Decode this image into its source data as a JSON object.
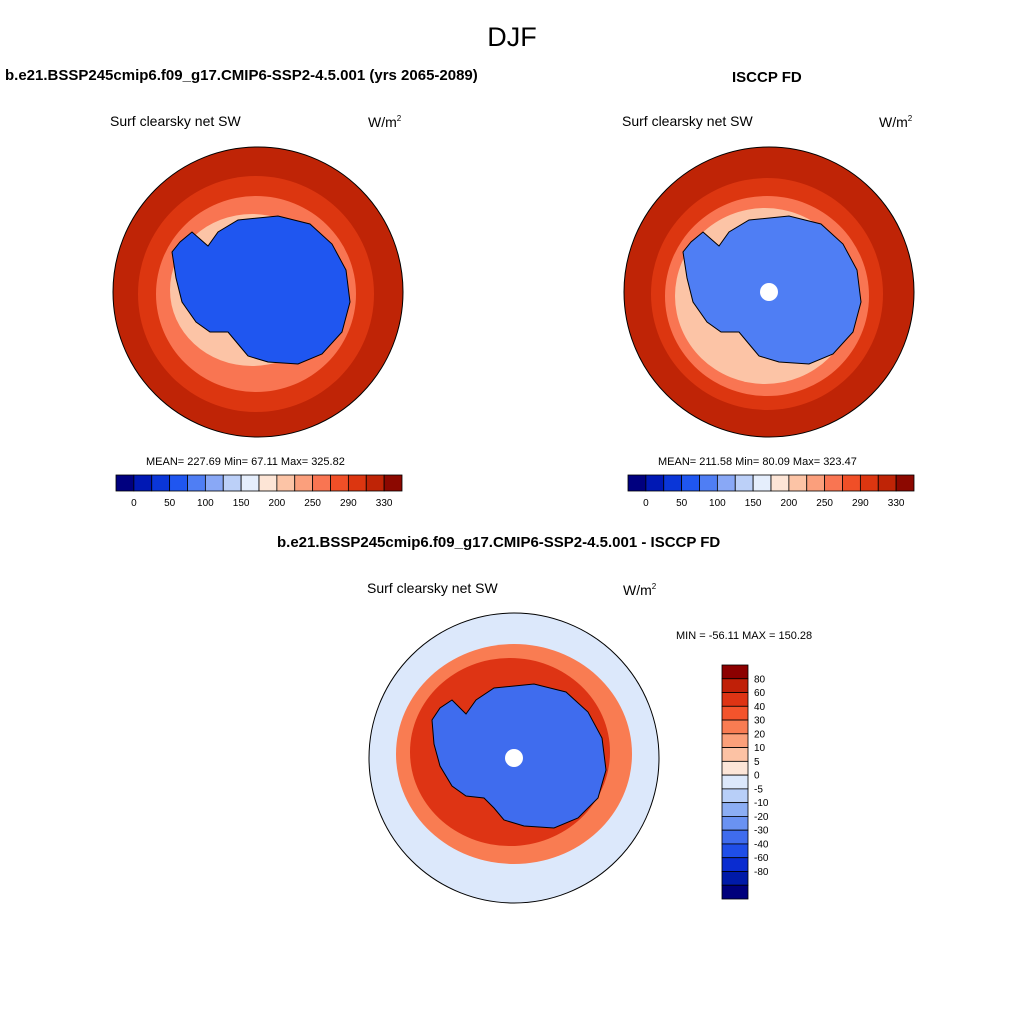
{
  "figure": {
    "title": "DJF"
  },
  "panels": {
    "model": {
      "title": "b.e21.BSSP245cmip6.f09_g17.CMIP6-SSP2-4.5.001 (yrs 2065-2089)",
      "variable": "Surf clearsky net SW",
      "units_base": "W/m",
      "units_exp": "2",
      "stats": "MEAN= 227.69  Min=  67.11  Max= 325.82"
    },
    "obs": {
      "title": "ISCCP FD",
      "variable": "Surf clearsky net SW",
      "units_base": "W/m",
      "units_exp": "2",
      "stats": "MEAN= 211.58  Min=  80.09  Max= 323.47"
    },
    "diff": {
      "title": "b.e21.BSSP245cmip6.f09_g17.CMIP6-SSP2-4.5.001 - ISCCP FD",
      "variable": "Surf clearsky net SW",
      "units_base": "W/m",
      "units_exp": "2",
      "stats": "MIN = -56.11 MAX = 150.28"
    }
  },
  "colorbars": {
    "abs": {
      "orientation": "horizontal",
      "colors": [
        "#00007f",
        "#0018b4",
        "#0a36d8",
        "#1f56f0",
        "#4f7ef4",
        "#89a8f6",
        "#bcd0f8",
        "#e5eefc",
        "#fde5d6",
        "#fcc4a6",
        "#fb9f7c",
        "#f97552",
        "#f04f27",
        "#dc3610",
        "#bf2406",
        "#8c0800"
      ],
      "tick_labels": [
        "0",
        "50",
        "100",
        "150",
        "200",
        "250",
        "290",
        "330"
      ]
    },
    "diff": {
      "orientation": "vertical",
      "colors": [
        "#8c0000",
        "#c02008",
        "#de3414",
        "#f3542c",
        "#f97c52",
        "#fba07a",
        "#fcc2a4",
        "#fde6d8",
        "#dce8fb",
        "#b8cff8",
        "#8caef4",
        "#6a92f2",
        "#3f6cee",
        "#1f4ee8",
        "#0a2cd0",
        "#001aa8",
        "#00007c"
      ],
      "tick_labels": [
        "80",
        "60",
        "40",
        "30",
        "20",
        "10",
        "5",
        "0",
        "-5",
        "-10",
        "-20",
        "-30",
        "-40",
        "-60",
        "-80"
      ]
    }
  },
  "map_colors": {
    "ocean_far": "#bf2406",
    "ocean_mid": "#dc3610",
    "ocean_near": "#f97552",
    "ice_edge": "#fcc4a6",
    "land": "#1f56f0",
    "land_obs": "#4f7ef4",
    "coast": "#000000",
    "pole_hole": "#ffffff",
    "diff_bg": "#dce8fb",
    "diff_warm": "#de3414",
    "diff_warm2": "#f97c52",
    "diff_cold": "#3f6cee"
  }
}
